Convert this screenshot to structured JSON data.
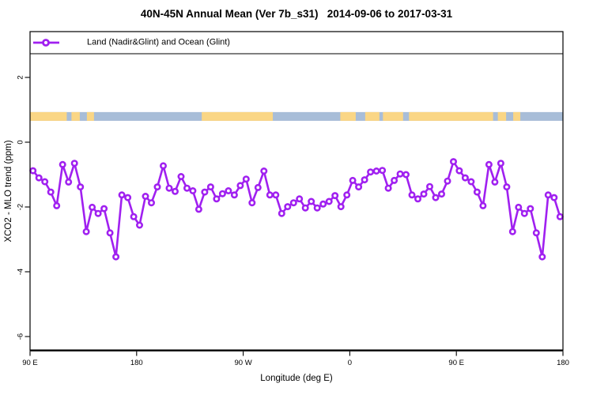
{
  "title": "40N-45N Annual Mean (Ver 7b_s31)   2014-09-06 to 2017-03-31",
  "legend": {
    "label": "Land (Nadir&Glint) and Ocean (Glint)"
  },
  "colors": {
    "series": "#A020F0",
    "land_band": "#FAD685",
    "ocean_band": "#A8BDD8",
    "axis": "#000000",
    "background": "#FFFFFF"
  },
  "chart_data": {
    "type": "line",
    "title": "40N-45N Annual Mean (Ver 7b_s31)   2014-09-06 to 2017-03-31",
    "xlabel": "Longitude (deg E)",
    "ylabel": "XCO2 - MLO trend (ppm)",
    "legend_position": "top-left",
    "grid": false,
    "xlim": [
      90,
      540
    ],
    "ylim": [
      -6.5,
      3.4
    ],
    "x_ticks": [
      {
        "pos": 90,
        "label": "90 E"
      },
      {
        "pos": 180,
        "label": "180"
      },
      {
        "pos": 270,
        "label": "90 W"
      },
      {
        "pos": 360,
        "label": "0"
      },
      {
        "pos": 450,
        "label": "90 E"
      },
      {
        "pos": 540,
        "label": "180"
      }
    ],
    "y_ticks": [
      {
        "pos": 2,
        "label": "2"
      },
      {
        "pos": 0,
        "label": "0"
      },
      {
        "pos": -2,
        "label": "-2"
      },
      {
        "pos": -4,
        "label": "-4"
      },
      {
        "pos": -6,
        "label": "-6"
      }
    ],
    "x": [
      92.5,
      97.5,
      102.5,
      107.5,
      112.5,
      117.5,
      122.5,
      127.5,
      132.5,
      137.5,
      142.5,
      147.5,
      152.5,
      157.5,
      162.5,
      167.5,
      172.5,
      177.5,
      182.5,
      187.5,
      192.5,
      197.5,
      202.5,
      207.5,
      212.5,
      217.5,
      222.5,
      227.5,
      232.5,
      237.5,
      242.5,
      247.5,
      252.5,
      257.5,
      262.5,
      267.5,
      272.5,
      277.5,
      282.5,
      287.5,
      292.5,
      297.5,
      302.5,
      307.5,
      312.5,
      317.5,
      322.5,
      327.5,
      332.5,
      337.5,
      342.5,
      347.5,
      352.5,
      357.5,
      362.5,
      367.5,
      372.5,
      377.5,
      382.5,
      387.5,
      392.5,
      397.5,
      402.5,
      407.5,
      412.5,
      417.5,
      422.5,
      427.5,
      432.5,
      437.5,
      442.5,
      447.5,
      452.5,
      457.5,
      462.5,
      467.5,
      472.5,
      477.5,
      482.5,
      487.5,
      492.5,
      497.5,
      502.5,
      507.5,
      512.5,
      517.5,
      522.5,
      527.5,
      532.5,
      537.5
    ],
    "series": [
      {
        "name": "Land (Nadir&Glint) and Ocean (Glint)",
        "values": [
          -0.88,
          -1.1,
          -1.22,
          -1.54,
          -1.96,
          -0.69,
          -1.23,
          -0.65,
          -1.38,
          -2.76,
          -2.01,
          -2.2,
          -2.05,
          -2.8,
          -3.54,
          -1.63,
          -1.71,
          -2.3,
          -2.56,
          -1.67,
          -1.87,
          -1.38,
          -0.73,
          -1.42,
          -1.52,
          -1.06,
          -1.42,
          -1.5,
          -2.07,
          -1.54,
          -1.38,
          -1.75,
          -1.59,
          -1.5,
          -1.63,
          -1.34,
          -1.14,
          -1.87,
          -1.4,
          -0.89,
          -1.63,
          -1.63,
          -2.2,
          -1.99,
          -1.87,
          -1.75,
          -2.03,
          -1.83,
          -2.03,
          -1.91,
          -1.83,
          -1.65,
          -1.99,
          -1.63,
          -1.18,
          -1.38,
          -1.16,
          -0.92,
          -0.89,
          -0.87,
          -1.42,
          -1.18,
          -0.98,
          -1.0,
          -1.63,
          -1.75,
          -1.6,
          -1.37,
          -1.71,
          -1.6,
          -1.2,
          -0.6,
          -0.88,
          -1.1,
          -1.22,
          -1.54,
          -1.96,
          -0.69,
          -1.23,
          -0.65,
          -1.38,
          -2.76,
          -2.01,
          -2.2,
          -2.05,
          -2.8,
          -3.54,
          -1.63,
          -1.71,
          -2.3
        ]
      }
    ],
    "map_band": {
      "description": "land/ocean strip for 40N-45N latitude belt",
      "value_top": 0.93,
      "value_bottom": 0.66,
      "land_segments": [
        [
          90,
          121
        ],
        [
          125,
          132
        ],
        [
          138,
          144
        ],
        [
          235,
          295
        ],
        [
          352,
          365
        ],
        [
          373,
          385
        ],
        [
          388,
          405
        ],
        [
          410,
          481
        ],
        [
          485,
          492
        ],
        [
          498,
          504
        ]
      ]
    }
  }
}
